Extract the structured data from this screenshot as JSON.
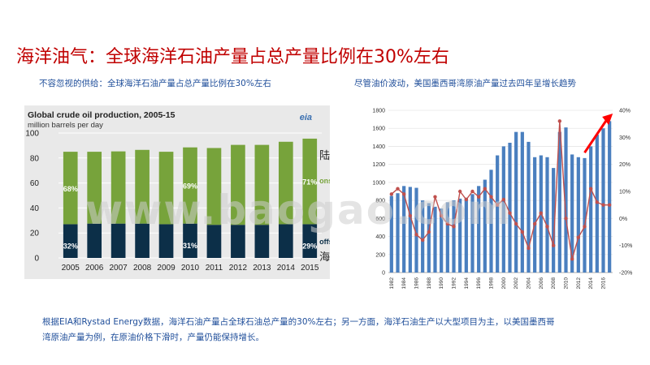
{
  "page": {
    "title": "海洋油气：全球海洋石油产量占总产量比例在30%左右",
    "subtitle_left": "不容忽视的供给：全球海洋石油产量占总产量比例在30%左右",
    "subtitle_right": "尽管油价波动，美国墨西哥湾原油产量过去四年呈增长趋势",
    "summary": "根据EIA和Rystad  Energy数据，海洋石油产量占全球石油总产量的30%左右；另一方面，海洋石油生产以大型项目为主，以美国墨西哥湾原油产量为例，在原油价格下滑时，产量仍能保持增长。",
    "watermark": "www.baogao.com"
  },
  "colors": {
    "title": "#c00000",
    "subtitle": "#1f4e9a",
    "onshore": "#77a33b",
    "offshore": "#0c2f48",
    "gulf_bars": "#4a7fbf",
    "price_line": "#c0504d",
    "arrow": "#ff0000"
  },
  "chart_data": [
    {
      "type": "bar",
      "stacked": true,
      "title": "Global crude oil production, 2005-15",
      "ylabel": "million barrels per day",
      "source_logo": "eia",
      "categories": [
        "2005",
        "2006",
        "2007",
        "2008",
        "2009",
        "2010",
        "2011",
        "2012",
        "2013",
        "2014",
        "2015"
      ],
      "series": [
        {
          "name": "offshore",
          "values": [
            27,
            27.5,
            27.5,
            27.5,
            27,
            27.5,
            26.5,
            26.5,
            26.5,
            27,
            27
          ]
        },
        {
          "name": "onshore",
          "values": [
            58,
            57.5,
            57.8,
            59,
            58,
            61,
            61.5,
            64,
            64,
            66,
            68.5
          ]
        }
      ],
      "ylim": [
        0,
        100
      ],
      "yticks": [
        0,
        20,
        40,
        60,
        80,
        100
      ],
      "labels": [
        {
          "text": "68%",
          "category": "2005",
          "series": "onshore"
        },
        {
          "text": "69%",
          "category": "2010",
          "series": "onshore"
        },
        {
          "text": "71%",
          "category": "2015",
          "series": "onshore"
        },
        {
          "text": "32%",
          "category": "2005",
          "series": "offshore"
        },
        {
          "text": "31%",
          "category": "2010",
          "series": "offshore"
        },
        {
          "text": "29%",
          "category": "2015",
          "series": "offshore"
        }
      ],
      "legend": {
        "onshore": "onshore",
        "offshore": "offshore",
        "onshore_cn": "陆地",
        "offshore_cn": "海洋"
      }
    },
    {
      "type": "bar+line",
      "categories": [
        "1982",
        "1983",
        "1984",
        "1985",
        "1986",
        "1987",
        "1988",
        "1989",
        "1990",
        "1991",
        "1992",
        "1993",
        "1994",
        "1995",
        "1996",
        "1997",
        "1998",
        "1999",
        "2000",
        "2001",
        "2002",
        "2003",
        "2004",
        "2005",
        "2006",
        "2007",
        "2008",
        "2009",
        "2010",
        "2011",
        "2012",
        "2013",
        "2014",
        "2015",
        "2016",
        "2017"
      ],
      "x_tick_labels": [
        "1982",
        "1984",
        "1986",
        "1988",
        "1990",
        "1992",
        "1994",
        "1996",
        "1998",
        "2000",
        "2002",
        "2004",
        "2006",
        "2008",
        "2010",
        "2012",
        "2014",
        "2016"
      ],
      "bars": {
        "name": "production",
        "axis": "left",
        "values": [
          850,
          880,
          960,
          950,
          940,
          800,
          770,
          730,
          710,
          780,
          800,
          820,
          830,
          870,
          960,
          1030,
          1140,
          1300,
          1400,
          1440,
          1560,
          1560,
          1450,
          1280,
          1300,
          1280,
          1160,
          1560,
          1610,
          1310,
          1280,
          1270,
          1400,
          1530,
          1600,
          1680
        ]
      },
      "line": {
        "name": "price_change",
        "axis": "right",
        "values": [
          9,
          11,
          9,
          1,
          -6,
          -8,
          -5,
          8,
          1,
          -2,
          -3,
          10,
          7,
          10,
          8,
          11,
          8,
          5,
          7,
          2,
          -2,
          -5,
          -11,
          -2,
          2,
          -3,
          -10,
          36,
          0,
          -15,
          -7,
          -3,
          11,
          6,
          5,
          5
        ]
      },
      "left_axis": {
        "min": 0,
        "max": 1800,
        "ticks": [
          0,
          200,
          400,
          600,
          800,
          1000,
          1200,
          1400,
          1600,
          1800
        ]
      },
      "right_axis": {
        "min": -20,
        "max": 40,
        "ticks": [
          "-20%",
          "-10%",
          "0%",
          "10%",
          "20%",
          "30%",
          "40%"
        ]
      }
    }
  ]
}
